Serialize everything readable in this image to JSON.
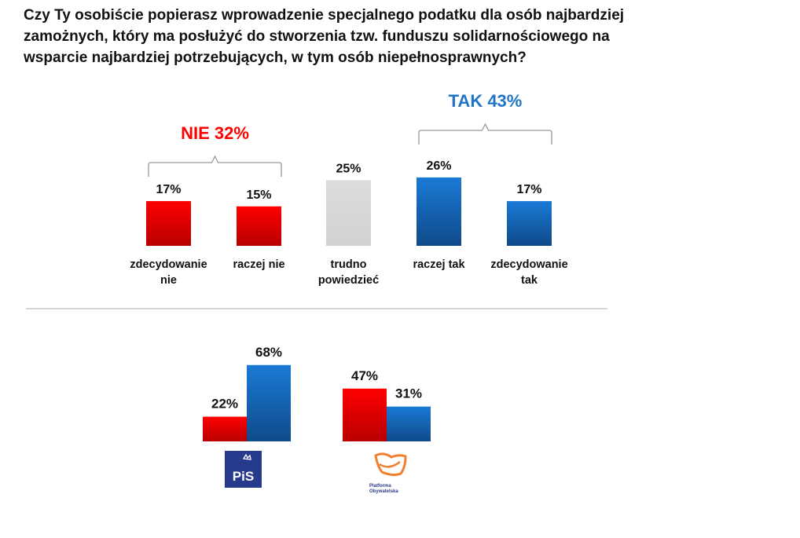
{
  "chart_data": [
    {
      "type": "bar",
      "title": "Czy Ty osobiście popierasz wprowadzenie specjalnego podatku dla osób najbardziej zamożnych, który ma posłużyć do stworzenia tzw. funduszu solidarnościowego na wsparcie najbardziej potrzebujących, w tym osób niepełnosprawnych?",
      "categories": [
        [
          "zdecydowanie",
          "nie"
        ],
        [
          "raczej nie"
        ],
        [
          "trudno",
          "powiedzieć"
        ],
        [
          "raczej tak"
        ],
        [
          "zdecydowanie",
          "tak"
        ]
      ],
      "values": [
        17,
        15,
        25,
        26,
        17
      ],
      "value_labels": [
        "17%",
        "15%",
        "25%",
        "26%",
        "17%"
      ],
      "colors": [
        "#e00000",
        "#e00000",
        "#d9d9d9",
        "#1565c0",
        "#1565c0"
      ],
      "groups": [
        {
          "label": "NIE 32%",
          "color": "#ff0000",
          "from": 0,
          "to": 1
        },
        {
          "label": "TAK 43%",
          "color": "#1f74c4",
          "from": 3,
          "to": 4
        }
      ],
      "xlabel": "",
      "ylabel": ""
    },
    {
      "type": "bar",
      "categories": [
        "PiS",
        "Platforma Obywatelska"
      ],
      "series": [
        {
          "name": "NIE",
          "color": "#e00000",
          "values": [
            22,
            47
          ],
          "labels": [
            "22%",
            "47%"
          ]
        },
        {
          "name": "TAK",
          "color": "#1565c0",
          "values": [
            68,
            31
          ],
          "labels": [
            "68%",
            "31%"
          ]
        }
      ],
      "logos": [
        "PiS",
        "Platforma Obywatelska"
      ]
    }
  ]
}
